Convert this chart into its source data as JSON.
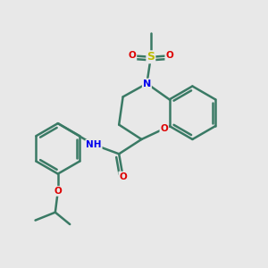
{
  "bg_color": "#e8e8e8",
  "bond_color": "#3a7a65",
  "bond_width": 1.8,
  "atom_colors": {
    "N": "#0000ee",
    "O": "#dd0000",
    "S": "#bbbb00",
    "C": "#3a7a65"
  },
  "fig_size": [
    3.0,
    3.0
  ],
  "dpi": 100
}
